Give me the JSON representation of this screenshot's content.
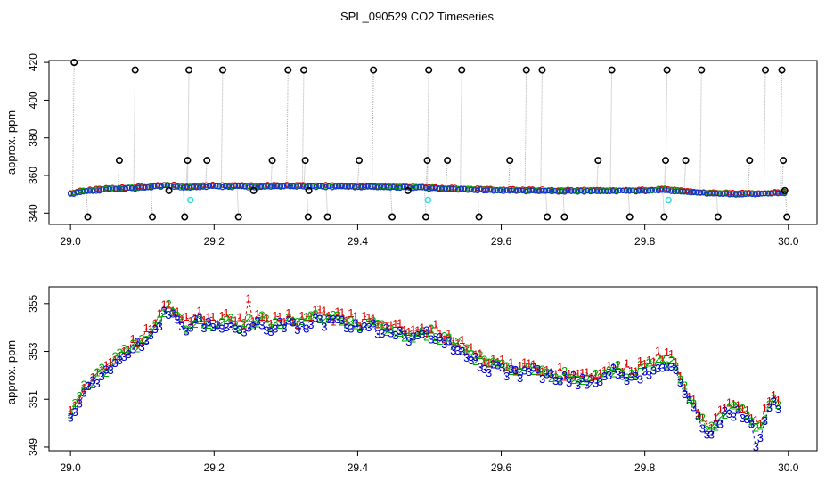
{
  "chart_data": {
    "title": "SPL_090529  CO2 Timeseries",
    "panels": [
      {
        "id": "top",
        "type": "scatter",
        "ylabel": "approx. ppm",
        "xlim": [
          28.97,
          30.04
        ],
        "ylim": [
          334,
          421
        ],
        "x_ticks": [
          29.0,
          29.2,
          29.4,
          29.6,
          29.8,
          30.0
        ],
        "x_tick_labels": [
          "29.0",
          "29.2",
          "29.4",
          "29.6",
          "29.8",
          "30.0"
        ],
        "y_ticks": [
          340,
          360,
          380,
          400,
          420
        ],
        "y_tick_labels": [
          "340",
          "360",
          "380",
          "400",
          "420"
        ],
        "baseline": [
          [
            29.0,
            350.3
          ],
          [
            29.02,
            351.5
          ],
          [
            29.05,
            352.6
          ],
          [
            29.1,
            353.4
          ],
          [
            29.135,
            354.6
          ],
          [
            29.16,
            353.6
          ],
          [
            29.2,
            354.2
          ],
          [
            29.25,
            354.0
          ],
          [
            29.3,
            354.3
          ],
          [
            29.33,
            354.1
          ],
          [
            29.4,
            354.0
          ],
          [
            29.47,
            353.6
          ],
          [
            29.5,
            353.2
          ],
          [
            29.55,
            352.5
          ],
          [
            29.6,
            352.0
          ],
          [
            29.7,
            351.6
          ],
          [
            29.8,
            351.8
          ],
          [
            29.83,
            352.3
          ],
          [
            29.86,
            351.0
          ],
          [
            29.9,
            350.3
          ],
          [
            29.95,
            350.0
          ],
          [
            29.99,
            350.5
          ]
        ],
        "spikes": [
          {
            "x": 29.003,
            "y": 420
          },
          {
            "x": 29.022,
            "y": 338
          },
          {
            "x": 29.066,
            "y": 368
          },
          {
            "x": 29.088,
            "y": 416
          },
          {
            "x": 29.112,
            "y": 338
          },
          {
            "x": 29.135,
            "y": 352
          },
          {
            "x": 29.157,
            "y": 338
          },
          {
            "x": 29.161,
            "y": 368
          },
          {
            "x": 29.163,
            "y": 416
          },
          {
            "x": 29.188,
            "y": 368
          },
          {
            "x": 29.21,
            "y": 416
          },
          {
            "x": 29.232,
            "y": 338
          },
          {
            "x": 29.253,
            "y": 352
          },
          {
            "x": 29.279,
            "y": 368
          },
          {
            "x": 29.301,
            "y": 416
          },
          {
            "x": 29.323,
            "y": 416
          },
          {
            "x": 29.325,
            "y": 368
          },
          {
            "x": 29.329,
            "y": 338
          },
          {
            "x": 29.33,
            "y": 352
          },
          {
            "x": 29.356,
            "y": 338
          },
          {
            "x": 29.4,
            "y": 368
          },
          {
            "x": 29.42,
            "y": 416
          },
          {
            "x": 29.446,
            "y": 338
          },
          {
            "x": 29.468,
            "y": 352
          },
          {
            "x": 29.493,
            "y": 338
          },
          {
            "x": 29.495,
            "y": 368
          },
          {
            "x": 29.497,
            "y": 416
          },
          {
            "x": 29.523,
            "y": 368
          },
          {
            "x": 29.543,
            "y": 416
          },
          {
            "x": 29.567,
            "y": 338
          },
          {
            "x": 29.61,
            "y": 368
          },
          {
            "x": 29.633,
            "y": 416
          },
          {
            "x": 29.655,
            "y": 416
          },
          {
            "x": 29.662,
            "y": 338
          },
          {
            "x": 29.686,
            "y": 338
          },
          {
            "x": 29.733,
            "y": 368
          },
          {
            "x": 29.752,
            "y": 416
          },
          {
            "x": 29.777,
            "y": 338
          },
          {
            "x": 29.825,
            "y": 338
          },
          {
            "x": 29.827,
            "y": 368
          },
          {
            "x": 29.829,
            "y": 416
          },
          {
            "x": 29.855,
            "y": 368
          },
          {
            "x": 29.877,
            "y": 416
          },
          {
            "x": 29.9,
            "y": 338
          },
          {
            "x": 29.944,
            "y": 368
          },
          {
            "x": 29.966,
            "y": 416
          },
          {
            "x": 29.989,
            "y": 416
          },
          {
            "x": 29.991,
            "y": 368
          },
          {
            "x": 29.993,
            "y": 352
          },
          {
            "x": 29.996,
            "y": 338
          }
        ],
        "cyan_points": [
          {
            "x": 29.167,
            "y": 347
          },
          {
            "x": 29.498,
            "y": 347
          },
          {
            "x": 29.833,
            "y": 347
          }
        ]
      },
      {
        "id": "bottom",
        "type": "line",
        "ylabel": "approx. ppm",
        "xlim": [
          28.97,
          30.04
        ],
        "ylim": [
          348.85,
          355.7
        ],
        "x_ticks": [
          29.0,
          29.2,
          29.4,
          29.6,
          29.8,
          30.0
        ],
        "x_tick_labels": [
          "29.0",
          "29.2",
          "29.4",
          "29.6",
          "29.8",
          "30.0"
        ],
        "y_ticks": [
          349,
          351,
          353,
          355
        ],
        "y_tick_labels": [
          "349",
          "351",
          "353",
          "355"
        ],
        "series_markers": [
          "1",
          "2",
          "3"
        ],
        "series": [
          {
            "name": "1",
            "color": "#dd0000",
            "offset": 0.32
          },
          {
            "name": "2",
            "color": "#00aa00",
            "offset": 0.16
          },
          {
            "name": "3",
            "color": "#0000cc",
            "offset": 0.0
          }
        ],
        "baseline": [
          [
            29.0,
            350.3
          ],
          [
            29.01,
            350.6
          ],
          [
            29.02,
            351.3
          ],
          [
            29.04,
            351.9
          ],
          [
            29.06,
            352.4
          ],
          [
            29.08,
            352.9
          ],
          [
            29.1,
            353.3
          ],
          [
            29.12,
            354.0
          ],
          [
            29.135,
            354.7
          ],
          [
            29.145,
            354.3
          ],
          [
            29.16,
            353.9
          ],
          [
            29.18,
            354.2
          ],
          [
            29.2,
            354.0
          ],
          [
            29.22,
            354.1
          ],
          [
            29.24,
            353.9
          ],
          [
            29.26,
            354.2
          ],
          [
            29.28,
            354.0
          ],
          [
            29.3,
            354.1
          ],
          [
            29.32,
            353.9
          ],
          [
            29.34,
            354.3
          ],
          [
            29.36,
            354.1
          ],
          [
            29.38,
            354.2
          ],
          [
            29.4,
            353.9
          ],
          [
            29.42,
            354.0
          ],
          [
            29.44,
            353.8
          ],
          [
            29.46,
            353.6
          ],
          [
            29.48,
            353.4
          ],
          [
            29.5,
            353.7
          ],
          [
            29.52,
            353.4
          ],
          [
            29.54,
            353.1
          ],
          [
            29.56,
            352.7
          ],
          [
            29.58,
            352.3
          ],
          [
            29.6,
            352.2
          ],
          [
            29.62,
            352.0
          ],
          [
            29.64,
            352.2
          ],
          [
            29.66,
            351.9
          ],
          [
            29.68,
            351.8
          ],
          [
            29.7,
            351.8
          ],
          [
            29.72,
            351.6
          ],
          [
            29.74,
            351.9
          ],
          [
            29.76,
            352.1
          ],
          [
            29.78,
            351.9
          ],
          [
            29.8,
            352.1
          ],
          [
            29.82,
            352.4
          ],
          [
            29.84,
            352.5
          ],
          [
            29.85,
            351.5
          ],
          [
            29.86,
            351.0
          ],
          [
            29.87,
            350.3
          ],
          [
            29.88,
            349.9
          ],
          [
            29.89,
            349.6
          ],
          [
            29.9,
            349.7
          ],
          [
            29.91,
            350.3
          ],
          [
            29.93,
            350.4
          ],
          [
            29.945,
            350.0
          ],
          [
            29.96,
            349.5
          ],
          [
            29.97,
            350.3
          ],
          [
            29.98,
            350.7
          ],
          [
            29.99,
            350.3
          ]
        ],
        "spikes": [
          {
            "x": 29.25,
            "y": 355.2
          },
          {
            "x": 29.5,
            "y": 353.9
          },
          {
            "x": 29.82,
            "y": 353.0
          },
          {
            "x": 29.955,
            "y": 349.0
          },
          {
            "x": 29.89,
            "y": 349.5
          }
        ]
      }
    ],
    "colors": {
      "grey_line": "#b0b0b0",
      "top_points": [
        "#cc0000",
        "#00aa00",
        "#1030dd"
      ],
      "spike_circle": "#000000",
      "cyan": "#33dddd"
    }
  }
}
